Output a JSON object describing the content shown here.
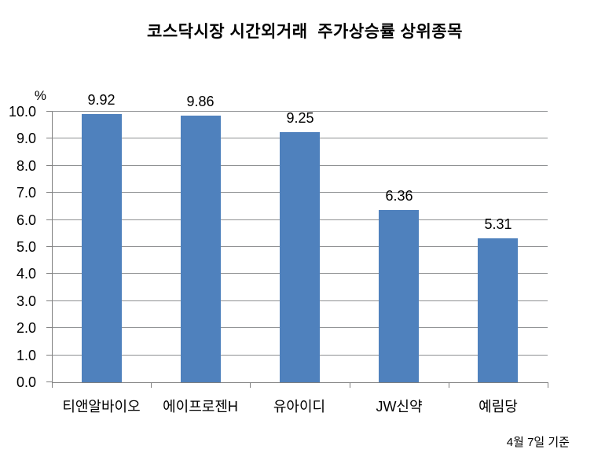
{
  "chart_data": {
    "type": "bar",
    "title": "코스닥시장 시간외거래  주가상승률 상위종목",
    "unit_label": "%",
    "categories": [
      "티앤알바이오",
      "에이프로젠H",
      "유아이디",
      "JW신약",
      "예림당"
    ],
    "values": [
      9.92,
      9.86,
      9.25,
      6.36,
      5.31
    ],
    "value_labels": [
      "9.92",
      "9.86",
      "9.25",
      "6.36",
      "5.31"
    ],
    "ylim": [
      0,
      10
    ],
    "ytick_step": 1.0,
    "ytick_labels": [
      "0.0",
      "1.0",
      "2.0",
      "3.0",
      "4.0",
      "5.0",
      "6.0",
      "7.0",
      "8.0",
      "9.0",
      "10.0"
    ],
    "footnote": "4월 7일 기준",
    "grid": true,
    "legend": "none",
    "bar_color": "#4F81BD",
    "gridline_color": "#8E9092",
    "axis_color": "#808080",
    "text_color": "#000000",
    "background_color": "#FFFFFF"
  }
}
